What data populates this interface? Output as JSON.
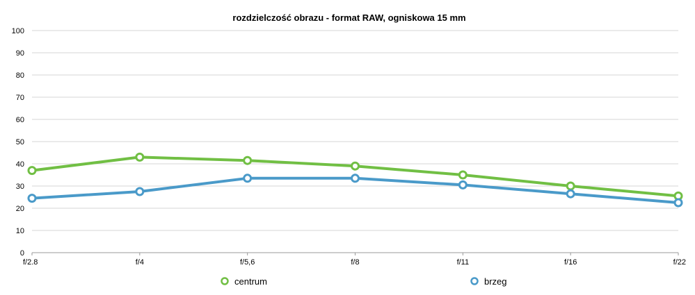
{
  "colors": {
    "centrum": "#71bf44",
    "brzeg": "#4a9ac9",
    "grid": "#d4d4d4",
    "axis": "#999999"
  },
  "chart_data": {
    "type": "line",
    "title": "rozdzielczość obrazu - format RAW, ogniskowa 15 mm",
    "categories": [
      "f/2.8",
      "f/4",
      "f/5,6",
      "f/8",
      "f/11",
      "f/16",
      "f/22"
    ],
    "y_ticks": [
      "0",
      "10",
      "20",
      "30",
      "40",
      "50",
      "60",
      "70",
      "80",
      "90",
      "100"
    ],
    "ylim": [
      0,
      100
    ],
    "grid": true,
    "legend_position": "bottom",
    "series": [
      {
        "name": "centrum",
        "color": "#71bf44",
        "values": [
          37,
          43,
          41.5,
          39,
          35,
          30,
          25.5
        ]
      },
      {
        "name": "brzeg",
        "color": "#4a9ac9",
        "values": [
          24.5,
          27.5,
          33.5,
          33.5,
          30.5,
          26.5,
          22.5
        ]
      }
    ]
  }
}
